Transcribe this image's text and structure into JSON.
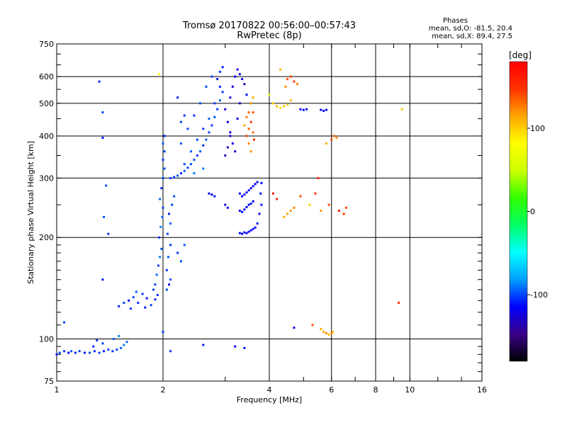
{
  "chart_data": {
    "type": "scatter",
    "title": "Tromsø 20170822 00:56:00–00:57:43",
    "subtitle": "RwPretec (8p)",
    "xlabel": "Frequency [MHz]",
    "ylabel": "Stationary phase Virtual Height [km]",
    "x_scale": "log",
    "y_scale": "log",
    "xlim": [
      1,
      16
    ],
    "ylim": [
      75,
      750
    ],
    "x_ticks": [
      1,
      2,
      4,
      6,
      8,
      10,
      16
    ],
    "x_tick_labels": [
      "1",
      "2",
      "4",
      "6",
      "8",
      "10",
      "16"
    ],
    "y_ticks": [
      75,
      100,
      200,
      300,
      400,
      500,
      600,
      750
    ],
    "y_tick_labels": [
      "75",
      "100",
      "200",
      "300",
      "400",
      "500",
      "600",
      "750"
    ],
    "grid": true,
    "phase_info": {
      "heading": "Phases",
      "line_o": "mean, sd,O: -81.5, 20.4",
      "line_x": "mean, sd,X:  89.4, 27.5"
    },
    "colorbar": {
      "label": "[deg]",
      "range": [
        -180,
        180
      ],
      "ticks": [
        100,
        0,
        -100
      ],
      "tick_labels": [
        "100",
        "0",
        "-100"
      ],
      "colors": [
        "#000000",
        "#3a0088",
        "#0000ff",
        "#00a0ff",
        "#00ffff",
        "#00ff66",
        "#33ff00",
        "#ccff00",
        "#ffff00",
        "#ffa500",
        "#ff3300",
        "#ff0000"
      ]
    },
    "series": [
      {
        "points": [
          [
            1.0,
            90,
            -110
          ],
          [
            1.02,
            91,
            -100
          ],
          [
            1.05,
            92,
            -105
          ],
          [
            1.08,
            91,
            -112
          ],
          [
            1.1,
            92,
            -98
          ],
          [
            1.13,
            91,
            -108
          ],
          [
            1.16,
            92,
            -104
          ],
          [
            1.2,
            91,
            -110
          ],
          [
            1.24,
            91,
            -100
          ],
          [
            1.28,
            92,
            -106
          ],
          [
            1.32,
            91,
            -102
          ],
          [
            1.36,
            92,
            -110
          ],
          [
            1.4,
            93,
            -99
          ],
          [
            1.44,
            92,
            -105
          ],
          [
            1.48,
            93,
            -100
          ],
          [
            1.52,
            94,
            -95
          ],
          [
            1.55,
            96,
            -90
          ],
          [
            1.58,
            98,
            -92
          ],
          [
            1.45,
            100,
            -96
          ],
          [
            1.5,
            102,
            -88
          ],
          [
            1.35,
            97,
            -101
          ],
          [
            1.3,
            99,
            -103
          ],
          [
            1.27,
            95,
            -107
          ],
          [
            1.05,
            112,
            -100
          ],
          [
            1.35,
            150,
            -110
          ],
          [
            1.5,
            125,
            -108
          ],
          [
            1.55,
            128,
            -100
          ],
          [
            1.6,
            130,
            -112
          ],
          [
            1.65,
            133,
            -98
          ],
          [
            1.7,
            128,
            -105
          ],
          [
            1.75,
            136,
            -102
          ],
          [
            1.8,
            132,
            -110
          ],
          [
            1.85,
            126,
            -100
          ],
          [
            1.9,
            131,
            -106
          ],
          [
            1.62,
            123,
            -103
          ],
          [
            1.68,
            138,
            -96
          ],
          [
            1.78,
            124,
            -109
          ],
          [
            1.88,
            140,
            -101
          ],
          [
            1.93,
            135,
            -104
          ],
          [
            1.9,
            145,
            -100
          ],
          [
            1.92,
            155,
            -95
          ],
          [
            1.94,
            165,
            -102
          ],
          [
            1.96,
            175,
            -90
          ],
          [
            1.98,
            185,
            -98
          ],
          [
            1.95,
            200,
            -104
          ],
          [
            1.97,
            215,
            -88
          ],
          [
            1.99,
            230,
            -96
          ],
          [
            2.0,
            245,
            -100
          ],
          [
            1.96,
            260,
            -92
          ],
          [
            1.98,
            280,
            -105
          ],
          [
            2.0,
            300,
            -98
          ],
          [
            2.02,
            320,
            -94
          ],
          [
            2.0,
            340,
            -102
          ],
          [
            2.02,
            360,
            -100
          ],
          [
            2.0,
            380,
            -96
          ],
          [
            2.02,
            400,
            -108
          ],
          [
            2.05,
            140,
            -100
          ],
          [
            2.08,
            145,
            -110
          ],
          [
            2.1,
            150,
            -98
          ],
          [
            2.05,
            160,
            -104
          ],
          [
            2.07,
            175,
            -96
          ],
          [
            2.1,
            190,
            -102
          ],
          [
            2.06,
            205,
            -100
          ],
          [
            2.1,
            220,
            -94
          ],
          [
            2.08,
            235,
            -106
          ],
          [
            2.12,
            250,
            -100
          ],
          [
            2.15,
            265,
            -98
          ],
          [
            2.2,
            180,
            -104
          ],
          [
            2.25,
            170,
            -100
          ],
          [
            2.3,
            190,
            -96
          ],
          [
            2.1,
            300,
            -100
          ],
          [
            2.15,
            302,
            -104
          ],
          [
            2.2,
            305,
            -98
          ],
          [
            2.25,
            310,
            -106
          ],
          [
            2.3,
            315,
            -95
          ],
          [
            2.35,
            322,
            -102
          ],
          [
            2.4,
            330,
            -99
          ],
          [
            2.45,
            340,
            -100
          ],
          [
            2.5,
            350,
            -103
          ],
          [
            2.55,
            360,
            -97
          ],
          [
            2.6,
            375,
            -104
          ],
          [
            2.65,
            390,
            -96
          ],
          [
            2.7,
            410,
            -100
          ],
          [
            2.75,
            430,
            -105
          ],
          [
            2.8,
            455,
            -98
          ],
          [
            2.85,
            480,
            -102
          ],
          [
            2.9,
            510,
            -96
          ],
          [
            2.95,
            540,
            -104
          ],
          [
            2.3,
            330,
            -101
          ],
          [
            2.4,
            360,
            -95
          ],
          [
            2.5,
            390,
            -99
          ],
          [
            2.6,
            420,
            -103
          ],
          [
            2.7,
            450,
            -94
          ],
          [
            2.8,
            500,
            -101
          ],
          [
            2.9,
            560,
            -106
          ],
          [
            2.85,
            590,
            -108
          ],
          [
            2.9,
            620,
            -104
          ],
          [
            2.95,
            640,
            -110
          ],
          [
            2.75,
            600,
            -102
          ],
          [
            2.65,
            560,
            -100
          ],
          [
            2.55,
            500,
            -98
          ],
          [
            2.45,
            460,
            -104
          ],
          [
            2.35,
            420,
            -100
          ],
          [
            2.25,
            380,
            -96
          ],
          [
            2.45,
            310,
            -90
          ],
          [
            2.6,
            320,
            -88
          ],
          [
            3.1,
            520,
            -120
          ],
          [
            3.15,
            560,
            -125
          ],
          [
            3.2,
            600,
            -118
          ],
          [
            3.25,
            630,
            -122
          ],
          [
            3.3,
            610,
            -126
          ],
          [
            3.35,
            590,
            -120
          ],
          [
            3.4,
            570,
            -128
          ],
          [
            3.0,
            480,
            -125
          ],
          [
            3.05,
            440,
            -118
          ],
          [
            3.1,
            410,
            -124
          ],
          [
            3.15,
            380,
            -120
          ],
          [
            3.2,
            360,
            -126
          ],
          [
            3.0,
            350,
            -135
          ],
          [
            3.05,
            370,
            -130
          ],
          [
            3.1,
            400,
            -128
          ],
          [
            3.25,
            450,
            -122
          ],
          [
            3.3,
            500,
            -126
          ],
          [
            3.45,
            530,
            -118
          ],
          [
            3.3,
            270,
            -112
          ],
          [
            3.35,
            265,
            -120
          ],
          [
            3.4,
            268,
            -110
          ],
          [
            3.45,
            272,
            -116
          ],
          [
            3.5,
            276,
            -112
          ],
          [
            3.55,
            280,
            -118
          ],
          [
            3.6,
            284,
            -110
          ],
          [
            3.65,
            288,
            -115
          ],
          [
            3.7,
            292,
            -112
          ],
          [
            3.3,
            240,
            -118
          ],
          [
            3.35,
            238,
            -112
          ],
          [
            3.4,
            242,
            -120
          ],
          [
            3.45,
            246,
            -114
          ],
          [
            3.5,
            250,
            -118
          ],
          [
            3.55,
            252,
            -110
          ],
          [
            3.6,
            256,
            -116
          ],
          [
            3.3,
            206,
            -112
          ],
          [
            3.35,
            205,
            -118
          ],
          [
            3.4,
            207,
            -110
          ],
          [
            3.45,
            206,
            -115
          ],
          [
            3.5,
            208,
            -112
          ],
          [
            3.55,
            210,
            -118
          ],
          [
            3.6,
            212,
            -110
          ],
          [
            3.65,
            214,
            -116
          ],
          [
            3.7,
            220,
            -112
          ],
          [
            3.75,
            235,
            -118
          ],
          [
            3.8,
            250,
            -110
          ],
          [
            3.78,
            270,
            -114
          ],
          [
            3.8,
            290,
            -112
          ],
          [
            2.7,
            270,
            -112
          ],
          [
            2.75,
            268,
            -118
          ],
          [
            2.8,
            265,
            -110
          ],
          [
            3.0,
            250,
            -125
          ],
          [
            3.05,
            245,
            -118
          ],
          [
            2.0,
            105,
            -100
          ],
          [
            2.1,
            92,
            -105
          ],
          [
            2.6,
            96,
            -110
          ],
          [
            3.2,
            95,
            -118
          ],
          [
            3.4,
            94,
            -110
          ],
          [
            4.7,
            108,
            -120
          ],
          [
            1.35,
            395,
            -110
          ],
          [
            1.35,
            470,
            -100
          ],
          [
            1.32,
            580,
            -105
          ],
          [
            1.38,
            285,
            -100
          ],
          [
            1.36,
            230,
            -98
          ],
          [
            1.4,
            205,
            -104
          ],
          [
            2.2,
            520,
            -110
          ],
          [
            2.25,
            440,
            -100
          ],
          [
            2.3,
            460,
            -104
          ]
        ]
      },
      {
        "points": [
          [
            1.95,
            610,
            80
          ],
          [
            3.45,
            400,
            140
          ],
          [
            3.5,
            420,
            135
          ],
          [
            3.55,
            440,
            145
          ],
          [
            3.6,
            410,
            130
          ],
          [
            3.62,
            390,
            150
          ],
          [
            3.5,
            380,
            125
          ],
          [
            3.55,
            360,
            120
          ],
          [
            3.4,
            430,
            115
          ],
          [
            3.6,
            470,
            140
          ],
          [
            3.45,
            455,
            128
          ],
          [
            3.5,
            470,
            132
          ],
          [
            3.55,
            500,
            120
          ],
          [
            3.6,
            520,
            110
          ],
          [
            4.1,
            500,
            100
          ],
          [
            4.2,
            490,
            110
          ],
          [
            4.3,
            485,
            95
          ],
          [
            4.4,
            490,
            105
          ],
          [
            4.5,
            495,
            100
          ],
          [
            4.6,
            510,
            110
          ],
          [
            4.45,
            560,
            120
          ],
          [
            4.5,
            590,
            135
          ],
          [
            4.6,
            600,
            140
          ],
          [
            4.7,
            580,
            150
          ],
          [
            4.8,
            570,
            125
          ],
          [
            4.9,
            480,
            -110
          ],
          [
            5.0,
            478,
            -115
          ],
          [
            5.1,
            480,
            -112
          ],
          [
            5.6,
            478,
            -120
          ],
          [
            5.7,
            475,
            -118
          ],
          [
            5.8,
            478,
            -115
          ],
          [
            4.0,
            530,
            60
          ],
          [
            4.3,
            630,
            110
          ],
          [
            4.6,
            240,
            120
          ],
          [
            4.5,
            235,
            115
          ],
          [
            4.4,
            230,
            110
          ],
          [
            4.7,
            245,
            125
          ],
          [
            4.9,
            265,
            140
          ],
          [
            5.2,
            250,
            100
          ],
          [
            5.4,
            270,
            150
          ],
          [
            5.6,
            240,
            120
          ],
          [
            5.5,
            300,
            160
          ],
          [
            5.9,
            250,
            140
          ],
          [
            6.0,
            390,
            140
          ],
          [
            6.1,
            400,
            130
          ],
          [
            6.2,
            395,
            120
          ],
          [
            6.3,
            240,
            160
          ],
          [
            6.5,
            235,
            150
          ],
          [
            6.6,
            245,
            140
          ],
          [
            5.8,
            380,
            110
          ],
          [
            5.6,
            107,
            110
          ],
          [
            5.7,
            105,
            115
          ],
          [
            5.8,
            104,
            120
          ],
          [
            5.9,
            103,
            105
          ],
          [
            6.0,
            104,
            120
          ],
          [
            6.05,
            105,
            110
          ],
          [
            5.3,
            110,
            140
          ],
          [
            9.3,
            128,
            150
          ],
          [
            9.5,
            480,
            100
          ],
          [
            4.2,
            260,
            160
          ],
          [
            4.1,
            270,
            165
          ]
        ]
      }
    ]
  }
}
